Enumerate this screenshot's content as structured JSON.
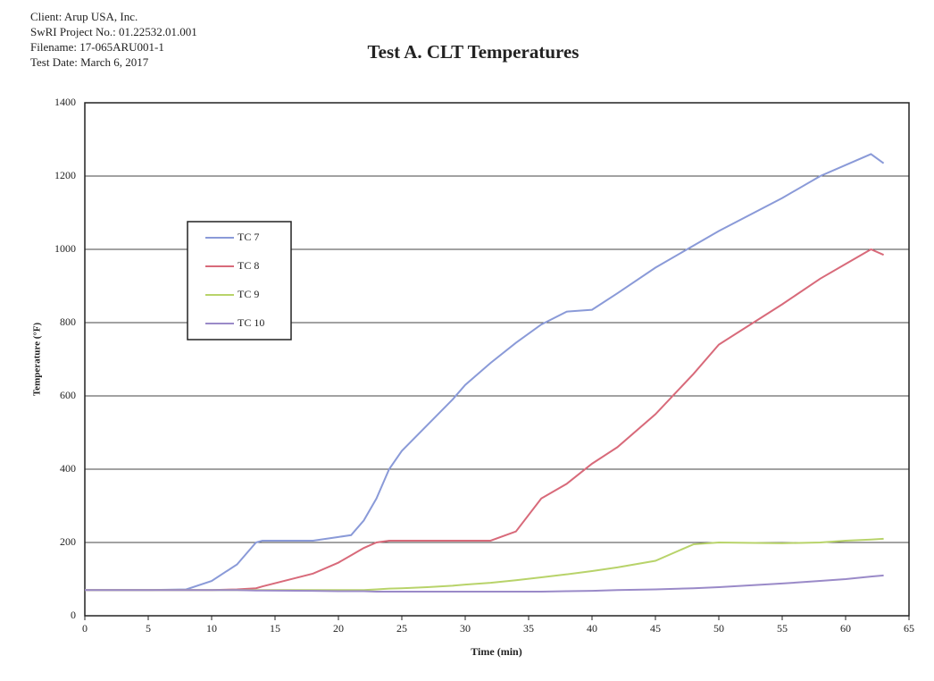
{
  "chart_data": {
    "type": "line",
    "header": [
      "Client: Arup USA, Inc.",
      "SwRI Project No.: 01.22532.01.001",
      "Filename: 17-065ARU001-1",
      "Test Date: March 6, 2017"
    ],
    "title": "Test A. CLT Temperatures",
    "x_label": "Time (min)",
    "y_label": "Temperature (°F)",
    "x": [
      0,
      5,
      8,
      10,
      12,
      13.5,
      14,
      18,
      20,
      21,
      22,
      23,
      24,
      25,
      27,
      29,
      30,
      32,
      34,
      36,
      38,
      40,
      42,
      45,
      48,
      50,
      55,
      58,
      60,
      62,
      63
    ],
    "series": [
      {
        "name": "TC 7",
        "color": "#8a9ad8",
        "values": [
          70,
          70,
          72,
          95,
          140,
          200,
          205,
          205,
          215,
          220,
          260,
          320,
          400,
          450,
          520,
          590,
          630,
          690,
          745,
          795,
          830,
          835,
          880,
          950,
          1010,
          1050,
          1140,
          1200,
          1230,
          1260,
          1235
        ]
      },
      {
        "name": "TC 8",
        "color": "#d86a7a",
        "values": [
          70,
          70,
          70,
          70,
          72,
          75,
          80,
          115,
          145,
          165,
          185,
          200,
          205,
          205,
          205,
          205,
          205,
          205,
          230,
          320,
          360,
          415,
          460,
          550,
          660,
          740,
          850,
          920,
          960,
          1000,
          985
        ]
      },
      {
        "name": "TC 9",
        "color": "#b8d36a",
        "values": [
          70,
          70,
          70,
          70,
          70,
          70,
          70,
          70,
          70,
          70,
          70,
          72,
          74,
          75,
          78,
          82,
          85,
          90,
          97,
          105,
          113,
          122,
          132,
          150,
          195,
          200,
          198,
          200,
          205,
          208,
          210
        ]
      },
      {
        "name": "TC 10",
        "color": "#9a8ac8",
        "values": [
          70,
          70,
          70,
          70,
          70,
          69,
          69,
          68,
          67,
          67,
          67,
          66,
          66,
          66,
          66,
          66,
          66,
          66,
          66,
          66,
          67,
          68,
          70,
          72,
          75,
          78,
          88,
          95,
          100,
          107,
          110
        ]
      }
    ],
    "xlim": [
      0,
      65
    ],
    "xticks": [
      0,
      5,
      10,
      15,
      20,
      25,
      30,
      35,
      40,
      45,
      50,
      55,
      60,
      65
    ],
    "ylim": [
      0,
      1400
    ],
    "yticks": [
      0,
      200,
      400,
      600,
      800,
      1000,
      1200,
      1400
    ],
    "grid": true
  }
}
